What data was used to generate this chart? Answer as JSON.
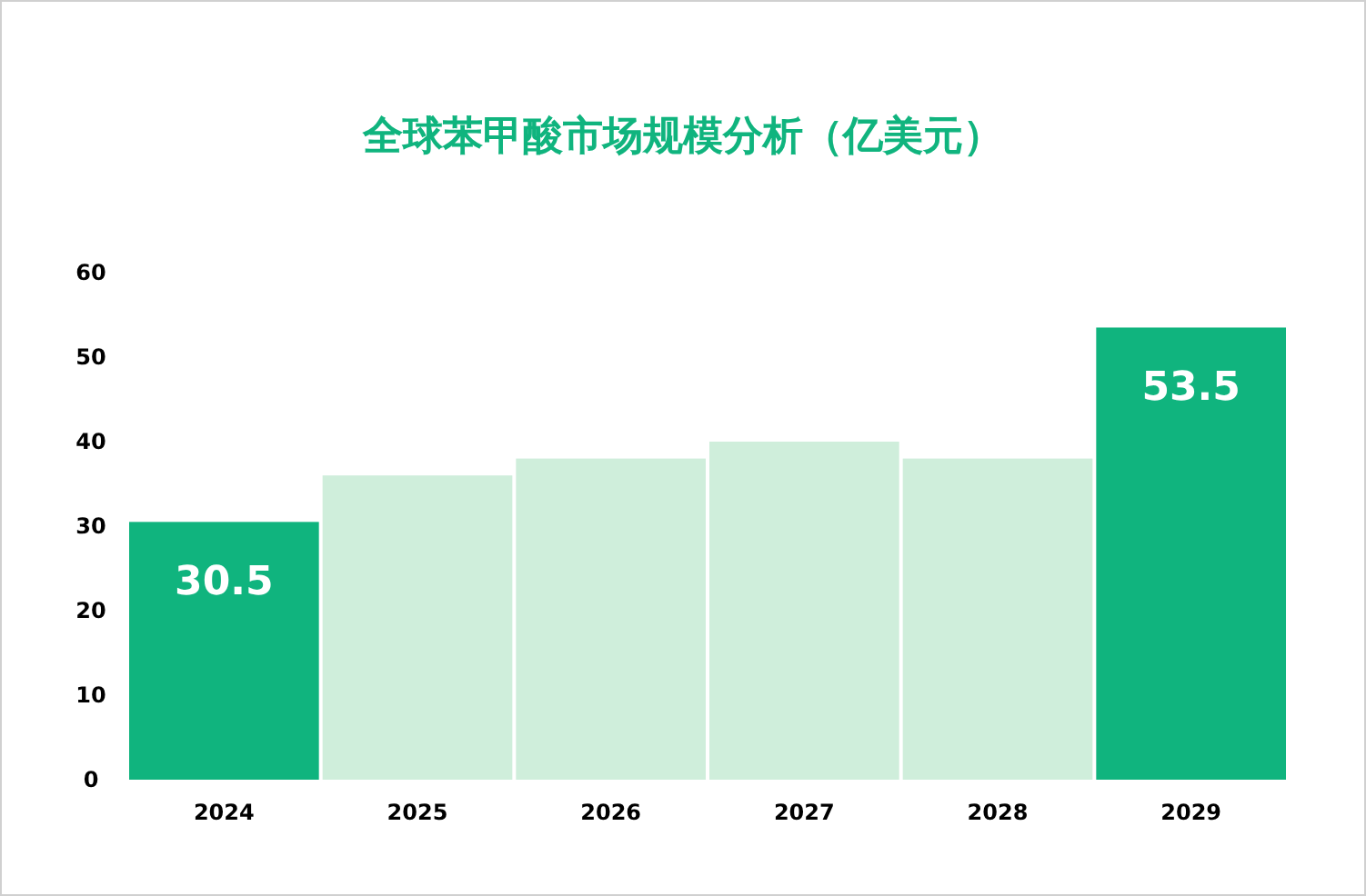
{
  "chart_data": {
    "type": "bar",
    "title": "全球苯甲酸市场规模分析（亿美元）",
    "categories": [
      "2024",
      "2025",
      "2026",
      "2027",
      "2028",
      "2029"
    ],
    "values": [
      30.5,
      36,
      38,
      40,
      38,
      53.5
    ],
    "colors": [
      "#10b47e",
      "#cfeedb",
      "#cfeedb",
      "#cfeedb",
      "#cfeedb",
      "#10b47e"
    ],
    "value_labels": [
      "30.5",
      null,
      null,
      null,
      null,
      "53.5"
    ],
    "ylim": [
      0,
      60
    ],
    "yticks": [
      0,
      10,
      20,
      30,
      40,
      50,
      60
    ]
  }
}
